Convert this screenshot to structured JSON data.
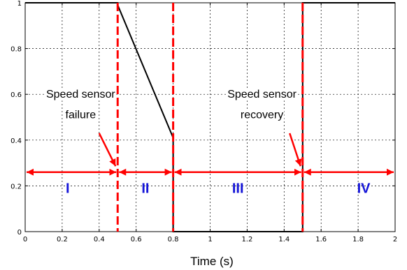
{
  "chart_data": {
    "type": "line",
    "title": "",
    "xlabel": "Time (s)",
    "ylabel": "",
    "xlim": [
      0,
      2
    ],
    "ylim": [
      0,
      1
    ],
    "grid": true,
    "x_ticks": [
      "0",
      "0.2",
      "0.4",
      "0.6",
      "0.8",
      "1",
      "1.2",
      "1.4",
      "1.6",
      "1.8",
      "2"
    ],
    "y_ticks": [
      "0",
      "0.2",
      "0.4",
      "0.6",
      "0.8",
      "1"
    ],
    "series": [
      {
        "color": "#000000",
        "x": [
          0,
          0.5,
          0.5,
          0.8,
          0.8,
          1.5,
          1.5,
          1.5,
          1.5,
          2
        ],
        "y": [
          1,
          1,
          0.99,
          0.41,
          0,
          0,
          0.75,
          0.85,
          1,
          1
        ]
      }
    ],
    "event_lines": [
      {
        "x": 0.5,
        "color": "#ff0000",
        "style": "dashed"
      },
      {
        "x": 0.8,
        "color": "#ff0000",
        "style": "dashed"
      },
      {
        "x": 1.5,
        "color": "#ff0000",
        "style": "dashed"
      }
    ],
    "regions": [
      {
        "label": "I",
        "x_start": 0,
        "x_end": 0.5,
        "label_x": 0.23
      },
      {
        "label": "II",
        "x_start": 0.5,
        "x_end": 0.8,
        "label_x": 0.65
      },
      {
        "label": "III",
        "x_start": 0.8,
        "x_end": 1.5,
        "label_x": 1.15
      },
      {
        "label": "IV",
        "x_start": 1.5,
        "x_end": 2,
        "label_x": 1.83
      }
    ],
    "region_arrow_y": 0.26,
    "region_color": "#ff0000",
    "annotations": [
      {
        "lines": [
          "Speed sensor",
          "failure"
        ],
        "text_x": 0.3,
        "text_y": [
          0.6,
          0.51
        ],
        "arrow_from": [
          0.4,
          0.43
        ],
        "arrow_to": [
          0.5,
          0.28
        ]
      },
      {
        "lines": [
          "Speed sensor",
          "recovery"
        ],
        "text_x": 1.28,
        "text_y": [
          0.6,
          0.51
        ],
        "arrow_from": [
          1.43,
          0.43
        ],
        "arrow_to": [
          1.5,
          0.28
        ]
      }
    ]
  }
}
